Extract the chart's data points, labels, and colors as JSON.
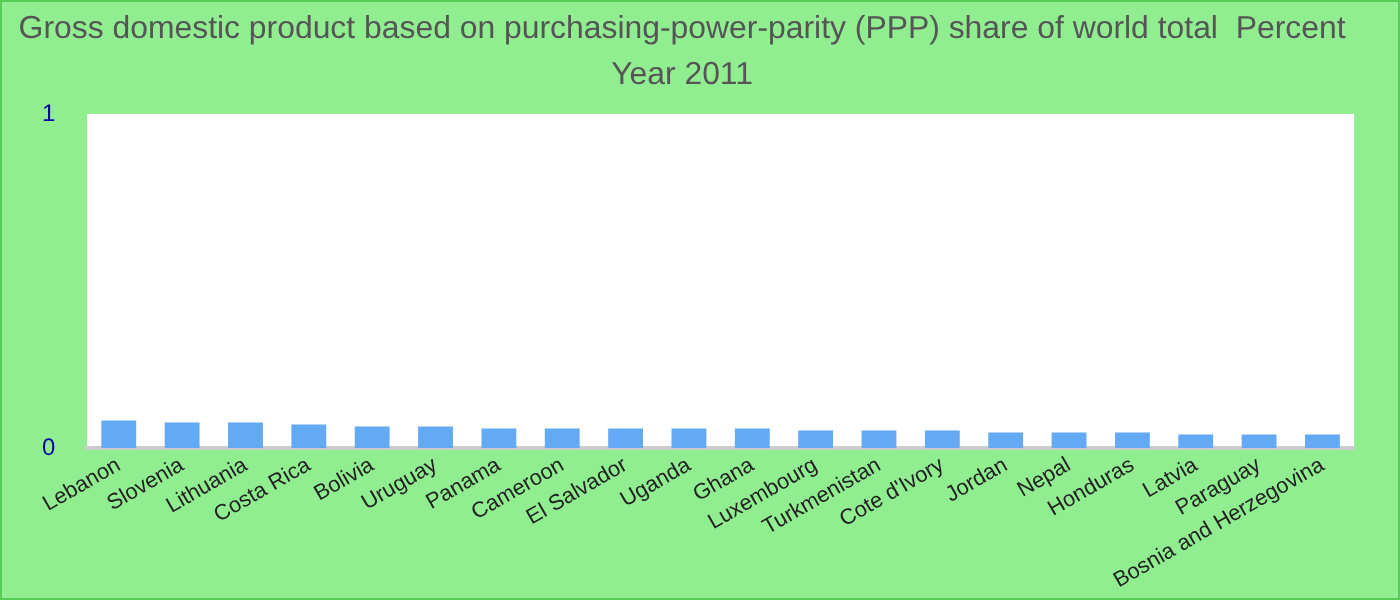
{
  "chart_data": {
    "type": "bar",
    "title": "Gross domestic product based on purchasing-power-parity (PPP) share of world total  Percent",
    "subtitle": "Year 2011",
    "categories": [
      "Lebanon",
      "Slovenia",
      "Lithuania",
      "Costa Rica",
      "Bolivia",
      "Uruguay",
      "Panama",
      "Cameroon",
      "El Salvador",
      "Uganda",
      "Ghana",
      "Luxembourg",
      "Turkmenistan",
      "Cote d'Ivory",
      "Jordan",
      "Nepal",
      "Honduras",
      "Latvia",
      "Paraguay",
      "Bosnia and Herzegovina"
    ],
    "values": [
      0.083,
      0.077,
      0.077,
      0.071,
      0.065,
      0.065,
      0.059,
      0.059,
      0.059,
      0.059,
      0.059,
      0.053,
      0.053,
      0.053,
      0.047,
      0.047,
      0.047,
      0.041,
      0.041,
      0.041
    ],
    "color": "#63a9f4",
    "ylim": [
      0,
      1
    ],
    "yticks": [
      0,
      1
    ],
    "grid": false,
    "legend": false
  }
}
